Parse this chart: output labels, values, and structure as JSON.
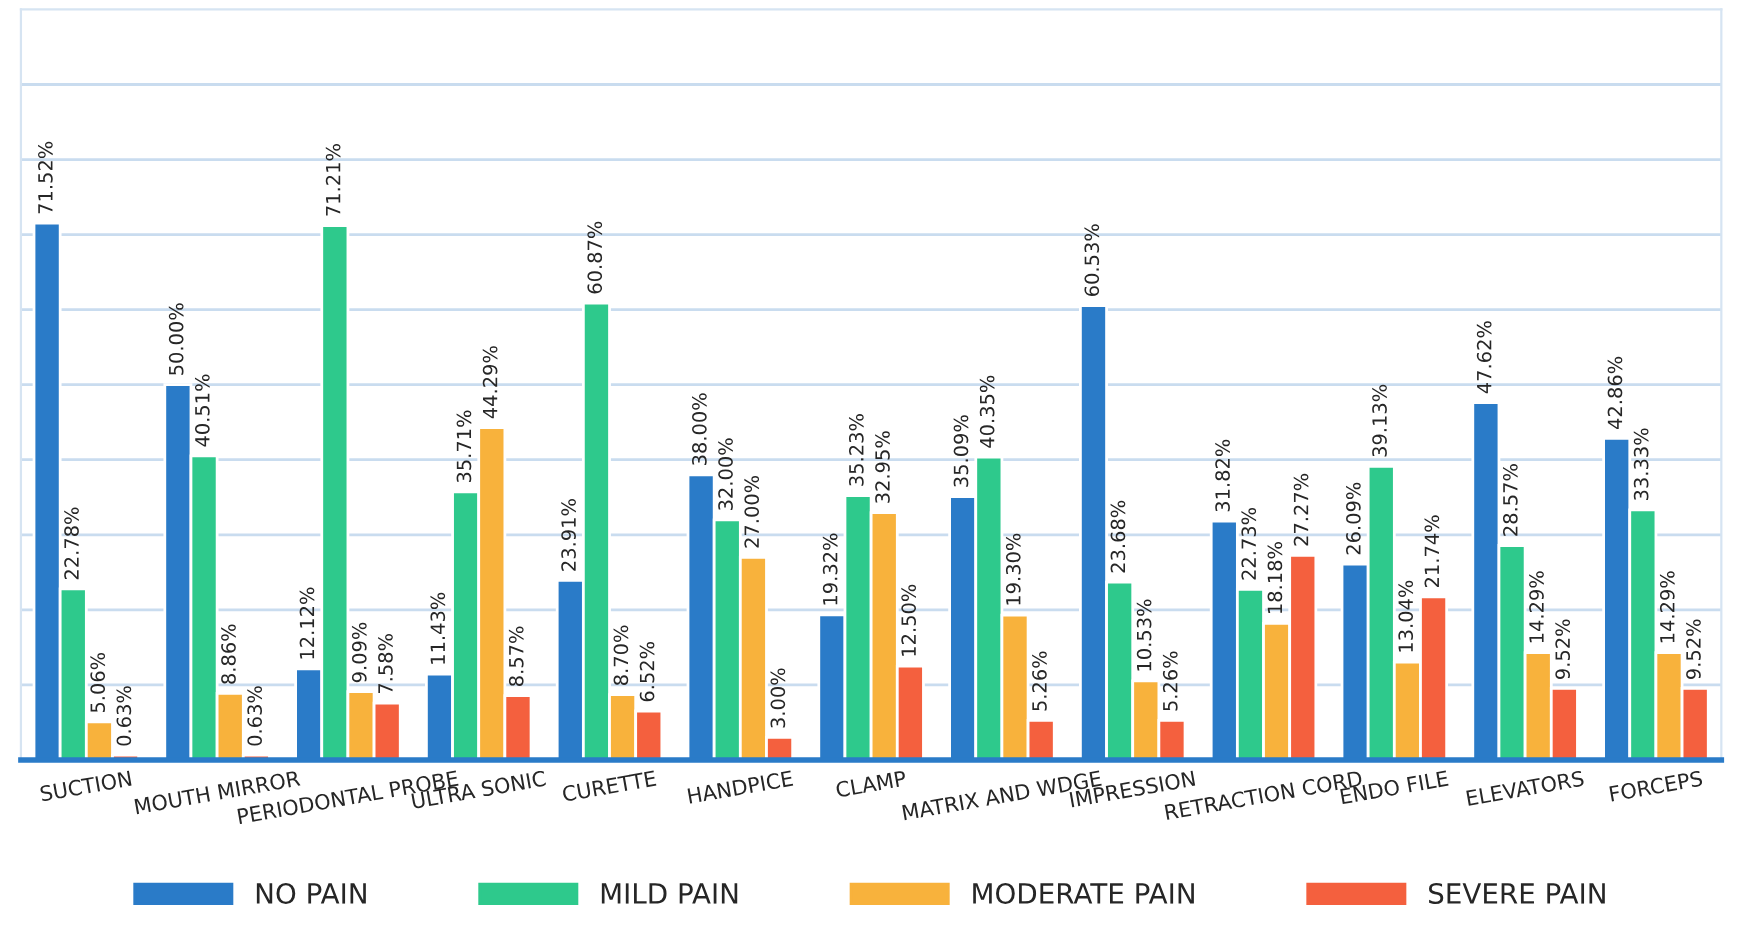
{
  "chart_data": {
    "type": "bar",
    "categories": [
      "SUCTION",
      "MOUTH MIRROR",
      "PERIODONTAL PROBE",
      "ULTRA SONIC",
      "CURETTE",
      "HANDPICE",
      "CLAMP",
      "MATRIX AND WDGE",
      "IMPRESSION",
      "RETRACTION CORD",
      "ENDO FILE",
      "ELEVATORS",
      "FORCEPS"
    ],
    "series": [
      {
        "name": "NO PAIN",
        "color": "#2a7bc8",
        "values": [
          71.52,
          50.0,
          12.12,
          11.43,
          23.91,
          38.0,
          19.32,
          35.09,
          60.53,
          31.82,
          26.09,
          47.62,
          42.86
        ],
        "value_labels": [
          "71.52%",
          "50.00%",
          "12.12%",
          "11.43%",
          "23.91%",
          "38.00%",
          "19.32%",
          "35.09%",
          "60.53%",
          "31.82%",
          "26.09%",
          "47.62%",
          "42.86%"
        ]
      },
      {
        "name": "MILD PAIN",
        "color": "#2ec98c",
        "values": [
          22.78,
          40.51,
          71.21,
          35.71,
          60.87,
          32.0,
          35.23,
          40.35,
          23.68,
          22.73,
          39.13,
          28.57,
          33.33
        ],
        "value_labels": [
          "22.78%",
          "40.51%",
          "71.21%",
          "35.71%",
          "60.87%",
          "32.00%",
          "35.23%",
          "40.35%",
          "23.68%",
          "22.73%",
          "39.13%",
          "28.57%",
          "33.33%"
        ]
      },
      {
        "name": "MODERATE PAIN",
        "color": "#f8b23c",
        "values": [
          5.06,
          8.86,
          9.09,
          44.29,
          8.7,
          27.0,
          32.95,
          19.3,
          10.53,
          18.18,
          13.04,
          14.29,
          14.29
        ],
        "value_labels": [
          "5.06%",
          "8.86%",
          "9.09%",
          "44.29%",
          "8.70%",
          "27.00%",
          "32.95%",
          "19.30%",
          "10.53%",
          "18.18%",
          "13.04%",
          "14.29%",
          "14.29%"
        ]
      },
      {
        "name": "SEVERE PAIN",
        "color": "#f4603e",
        "values": [
          0.63,
          0.63,
          7.58,
          8.57,
          6.52,
          3.0,
          12.5,
          5.26,
          5.26,
          27.27,
          21.74,
          9.52,
          9.52
        ],
        "value_labels": [
          "0.63%",
          "0.63%",
          "7.58%",
          "8.57%",
          "6.52%",
          "3.00%",
          "12.50%",
          "5.26%",
          "5.26%",
          "27.27%",
          "21.74%",
          "9.52%",
          "9.52%"
        ]
      }
    ],
    "ylim": [
      0,
      100
    ],
    "yticks": [
      {
        "value": 0,
        "label": null
      },
      {
        "value": 10,
        "label": null
      },
      {
        "value": 20,
        "label": null
      },
      {
        "value": 30,
        "label": null
      },
      {
        "value": 40,
        "label": null
      },
      {
        "value": 50,
        "label": null
      },
      {
        "value": 60,
        "label": null
      },
      {
        "value": 70,
        "label": null
      },
      {
        "value": 80,
        "label": null
      },
      {
        "value": 90,
        "label": null
      }
    ],
    "tick_labels": "x",
    "grid": "y",
    "legend": "bottom"
  }
}
